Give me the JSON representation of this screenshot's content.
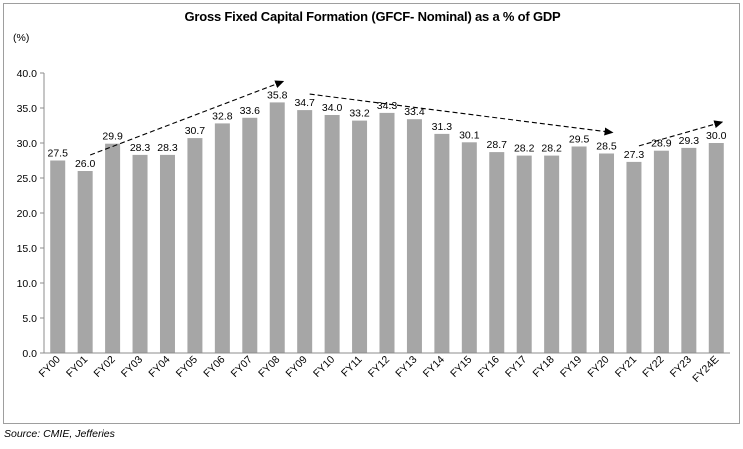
{
  "chart_data": {
    "type": "bar",
    "title": "Gross Fixed Capital Formation (GFCF- Nominal) as a % of GDP",
    "ylabel": "(%)",
    "xlabel": "",
    "categories": [
      "FY00",
      "FY01",
      "FY02",
      "FY03",
      "FY04",
      "FY05",
      "FY06",
      "FY07",
      "FY08",
      "FY09",
      "FY10",
      "FY11",
      "FY12",
      "FY13",
      "FY14",
      "FY15",
      "FY16",
      "FY17",
      "FY18",
      "FY19",
      "FY20",
      "FY21",
      "FY22",
      "FY23",
      "FY24E"
    ],
    "values": [
      27.5,
      26.0,
      29.9,
      28.3,
      28.3,
      30.7,
      32.8,
      33.6,
      35.8,
      34.7,
      34.0,
      33.2,
      34.3,
      33.4,
      31.3,
      30.1,
      28.7,
      28.2,
      28.2,
      29.5,
      28.5,
      27.3,
      28.9,
      29.3,
      30.0
    ],
    "ylim": [
      0,
      40
    ],
    "yticks": [
      "0.0",
      "5.0",
      "10.0",
      "15.0",
      "20.0",
      "25.0",
      "30.0",
      "35.0",
      "40.0"
    ],
    "bar_color": "#a6a6a6",
    "trend_arrows": [
      {
        "from": "FY01",
        "to": "FY08"
      },
      {
        "from": "FY09",
        "to": "FY20"
      },
      {
        "from": "FY21",
        "to": "FY24E"
      }
    ],
    "grid": false,
    "legend": "none",
    "source": "Source: CMIE, Jefferies"
  }
}
